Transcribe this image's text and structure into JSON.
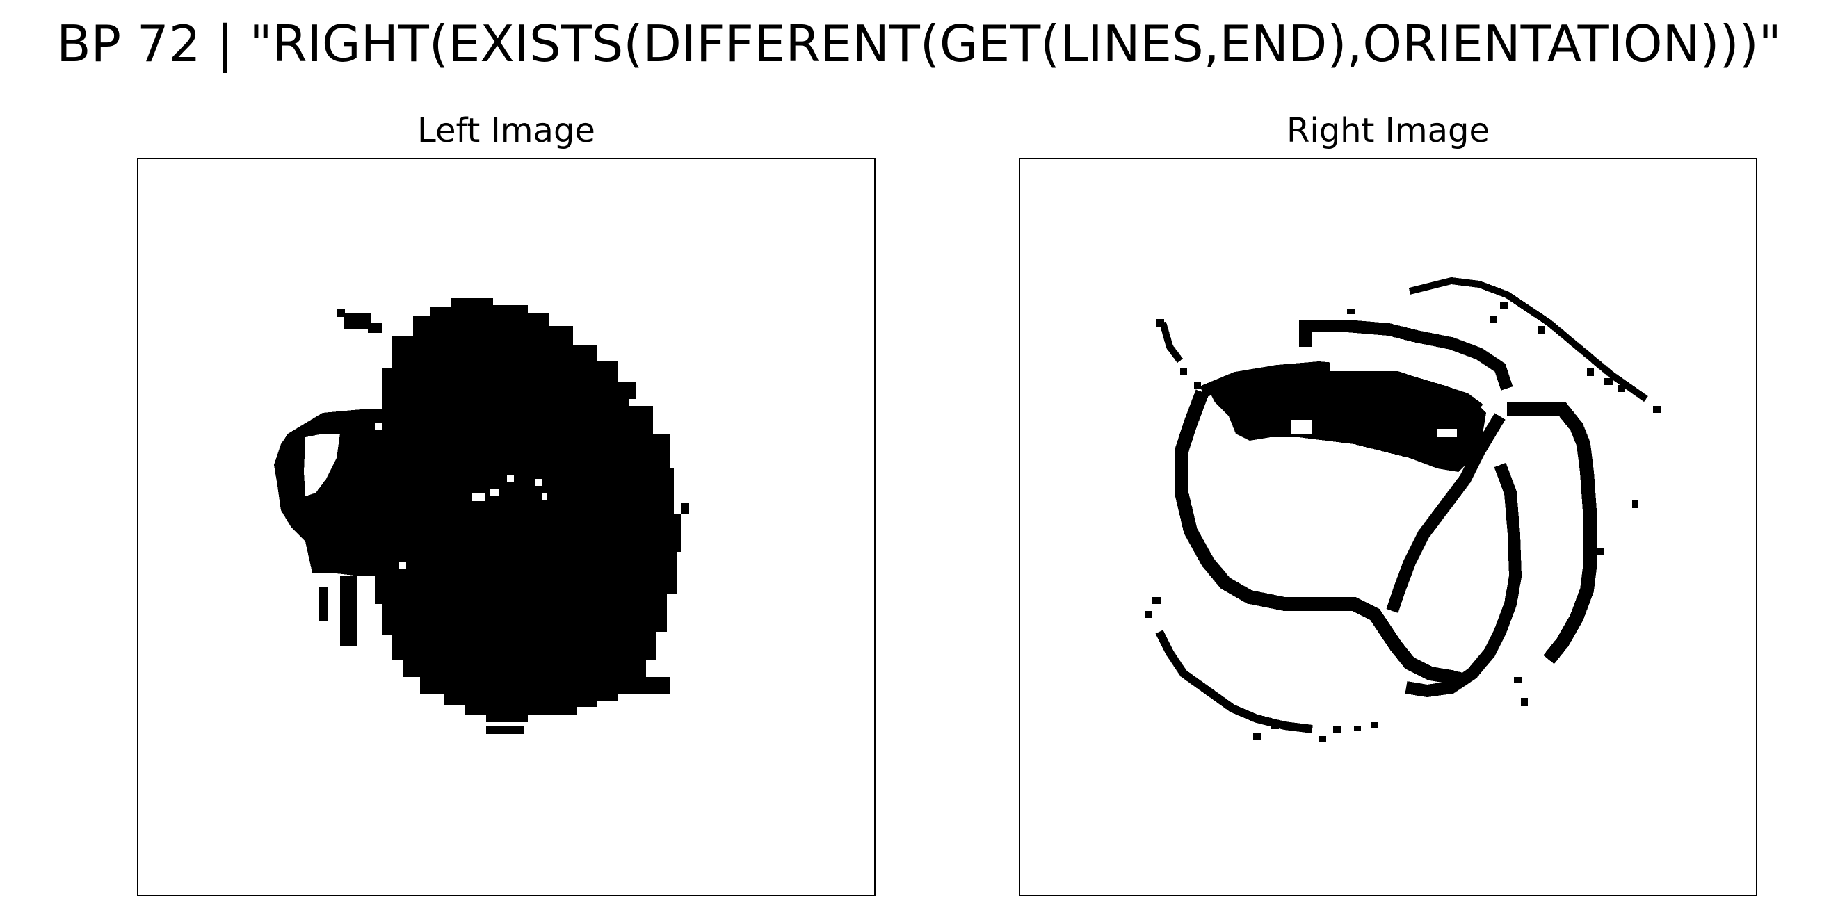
{
  "figure": {
    "title": "BP 72 | \"RIGHT(EXISTS(DIFFERENT(GET(LINES,END),ORIENTATION)))\""
  },
  "panels": [
    {
      "title": "Left Image",
      "image": "black ink blob shape on white",
      "ink_color": "#000000"
    },
    {
      "title": "Right Image",
      "image": "black ink looping line strokes on white",
      "ink_color": "#000000"
    }
  ]
}
